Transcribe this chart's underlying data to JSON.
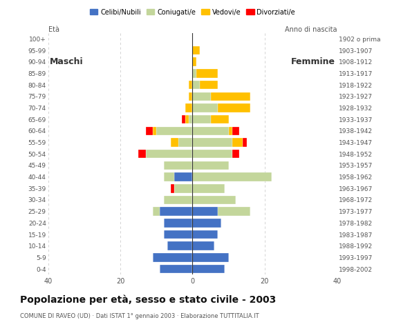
{
  "age_groups": [
    "0-4",
    "5-9",
    "10-14",
    "15-19",
    "20-24",
    "25-29",
    "30-34",
    "35-39",
    "40-44",
    "45-49",
    "50-54",
    "55-59",
    "60-64",
    "65-69",
    "70-74",
    "75-79",
    "80-84",
    "85-89",
    "90-94",
    "95-99",
    "100+"
  ],
  "birth_years": [
    "1998-2002",
    "1993-1997",
    "1988-1992",
    "1983-1987",
    "1978-1982",
    "1973-1977",
    "1968-1972",
    "1963-1967",
    "1958-1962",
    "1953-1957",
    "1948-1952",
    "1943-1947",
    "1938-1942",
    "1933-1937",
    "1928-1932",
    "1923-1927",
    "1918-1922",
    "1913-1917",
    "1908-1912",
    "1903-1907",
    "1902 o prima"
  ],
  "colors": {
    "celibe": "#4472C4",
    "coniugato": "#C3D69B",
    "vedovo": "#FFC000",
    "divorziato": "#FF0000"
  },
  "maschi": {
    "celibe": [
      9,
      11,
      7,
      8,
      8,
      9,
      0,
      0,
      5,
      0,
      0,
      0,
      0,
      0,
      0,
      0,
      0,
      0,
      0,
      0,
      0
    ],
    "coniugato": [
      0,
      0,
      0,
      0,
      0,
      2,
      8,
      5,
      3,
      8,
      13,
      4,
      10,
      1,
      0,
      0,
      0,
      0,
      0,
      0,
      0
    ],
    "vedovo": [
      0,
      0,
      0,
      0,
      0,
      0,
      0,
      0,
      0,
      0,
      0,
      2,
      1,
      1,
      2,
      1,
      1,
      0,
      0,
      0,
      0
    ],
    "divorziato": [
      0,
      0,
      0,
      0,
      0,
      0,
      0,
      1,
      0,
      0,
      2,
      0,
      2,
      1,
      0,
      0,
      0,
      0,
      0,
      0,
      0
    ]
  },
  "femmine": {
    "celibe": [
      9,
      10,
      6,
      7,
      8,
      7,
      0,
      0,
      0,
      0,
      0,
      0,
      0,
      0,
      0,
      0,
      0,
      0,
      0,
      0,
      0
    ],
    "coniugato": [
      0,
      0,
      0,
      0,
      0,
      9,
      12,
      9,
      22,
      10,
      11,
      11,
      10,
      5,
      7,
      5,
      2,
      1,
      0,
      0,
      0
    ],
    "vedovo": [
      0,
      0,
      0,
      0,
      0,
      0,
      0,
      0,
      0,
      0,
      0,
      3,
      1,
      5,
      9,
      11,
      5,
      6,
      1,
      2,
      0
    ],
    "divorziato": [
      0,
      0,
      0,
      0,
      0,
      0,
      0,
      0,
      0,
      0,
      2,
      1,
      2,
      0,
      0,
      0,
      0,
      0,
      0,
      0,
      0
    ]
  },
  "title": "Popolazione per età, sesso e stato civile - 2003",
  "subtitle": "COMUNE DI RAVEO (UD) · Dati ISTAT 1° gennaio 2003 · Elaborazione TUTTITALIA.IT",
  "legend_labels": [
    "Celibi/Nubili",
    "Coniugati/e",
    "Vedovi/e",
    "Divorziati/e"
  ],
  "xlim": 40,
  "background_color": "#FFFFFF",
  "grid_color": "#CCCCCC"
}
